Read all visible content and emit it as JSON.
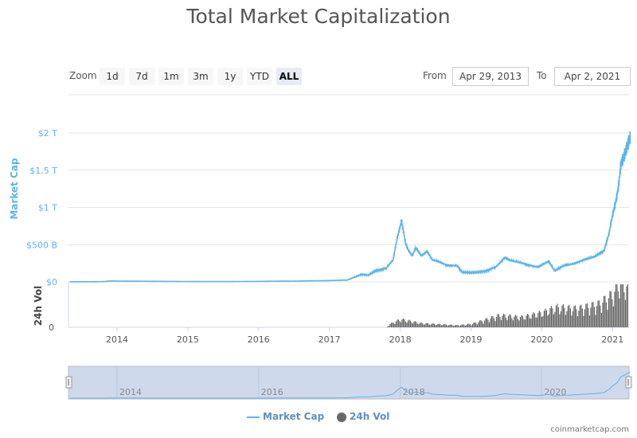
{
  "title": "Total Market Capitalization",
  "zoom": {
    "label": "Zoom",
    "buttons": [
      "1d",
      "7d",
      "1m",
      "3m",
      "1y",
      "YTD",
      "ALL"
    ],
    "active": "ALL"
  },
  "range": {
    "from_label": "From",
    "from": "Apr 29, 2013",
    "to_label": "To",
    "to": "Apr 2, 2021"
  },
  "colors": {
    "market_cap": "#5eb4ea",
    "volume": "#666666",
    "navigator_bg": "#cfd9ec"
  },
  "credit": "coinmarketcap.com",
  "chart_data": {
    "type": "line",
    "title": "Total Market Capitalization",
    "x_range": [
      "2013-04-29",
      "2021-04-02"
    ],
    "x_ticks": [
      "2014",
      "2015",
      "2016",
      "2017",
      "2018",
      "2019",
      "2020",
      "2021"
    ],
    "navigator_ticks": [
      "2014",
      "2016",
      "2018",
      "2020"
    ],
    "y_axis": {
      "label": "Market Cap",
      "ticks": [
        "$0",
        "$500 B",
        "$1 T",
        "$1,5 T",
        "$2 T"
      ],
      "range_usd_billion": [
        0,
        2000
      ]
    },
    "volume_axis": {
      "label": "24h Vol",
      "ticks": [
        "0"
      ]
    },
    "legend": {
      "placement": "bottom",
      "entries": [
        "Market Cap",
        "24h Vol"
      ]
    },
    "series": [
      {
        "name": "Market Cap",
        "unit": "USD billion",
        "points": [
          [
            "2013.33",
            1.5
          ],
          [
            "2013.8",
            3
          ],
          [
            "2013.92",
            14
          ],
          [
            "2014.1",
            10
          ],
          [
            "2014.5",
            8
          ],
          [
            "2015.0",
            5
          ],
          [
            "2015.5",
            4
          ],
          [
            "2016.0",
            7
          ],
          [
            "2016.5",
            11
          ],
          [
            "2017.0",
            18
          ],
          [
            "2017.25",
            25
          ],
          [
            "2017.45",
            100
          ],
          [
            "2017.55",
            90
          ],
          [
            "2017.65",
            150
          ],
          [
            "2017.8",
            180
          ],
          [
            "2017.9",
            300
          ],
          [
            "2017.96",
            600
          ],
          [
            "2018.02",
            820
          ],
          [
            "2018.08",
            500
          ],
          [
            "2018.12",
            420
          ],
          [
            "2018.17",
            350
          ],
          [
            "2018.22",
            460
          ],
          [
            "2018.3",
            350
          ],
          [
            "2018.38",
            410
          ],
          [
            "2018.45",
            300
          ],
          [
            "2018.55",
            270
          ],
          [
            "2018.65",
            230
          ],
          [
            "2018.8",
            215
          ],
          [
            "2018.88",
            130
          ],
          [
            "2019.0",
            125
          ],
          [
            "2019.2",
            140
          ],
          [
            "2019.35",
            200
          ],
          [
            "2019.48",
            330
          ],
          [
            "2019.55",
            290
          ],
          [
            "2019.7",
            260
          ],
          [
            "2019.85",
            220
          ],
          [
            "2019.95",
            195
          ],
          [
            "2020.1",
            280
          ],
          [
            "2020.18",
            150
          ],
          [
            "2020.3",
            210
          ],
          [
            "2020.45",
            245
          ],
          [
            "2020.6",
            300
          ],
          [
            "2020.75",
            340
          ],
          [
            "2020.88",
            420
          ],
          [
            "2020.95",
            650
          ],
          [
            "2021.0",
            900
          ],
          [
            "2021.04",
            1050
          ],
          [
            "2021.08",
            1250
          ],
          [
            "2021.12",
            1600
          ],
          [
            "2021.15",
            1650
          ],
          [
            "2021.2",
            1800
          ],
          [
            "2021.25",
            1950
          ]
        ]
      },
      {
        "name": "24h Vol",
        "unit": "relative",
        "points": [
          [
            "2013.33",
            0
          ],
          [
            "2017.8",
            0
          ],
          [
            "2017.85",
            5
          ],
          [
            "2018.0",
            12
          ],
          [
            "2018.3",
            6
          ],
          [
            "2018.8",
            3
          ],
          [
            "2019.0",
            5
          ],
          [
            "2019.4",
            18
          ],
          [
            "2019.7",
            15
          ],
          [
            "2020.0",
            22
          ],
          [
            "2020.2",
            30
          ],
          [
            "2020.5",
            28
          ],
          [
            "2020.8",
            35
          ],
          [
            "2021.0",
            50
          ],
          [
            "2021.1",
            70
          ],
          [
            "2021.25",
            55
          ]
        ]
      }
    ]
  }
}
